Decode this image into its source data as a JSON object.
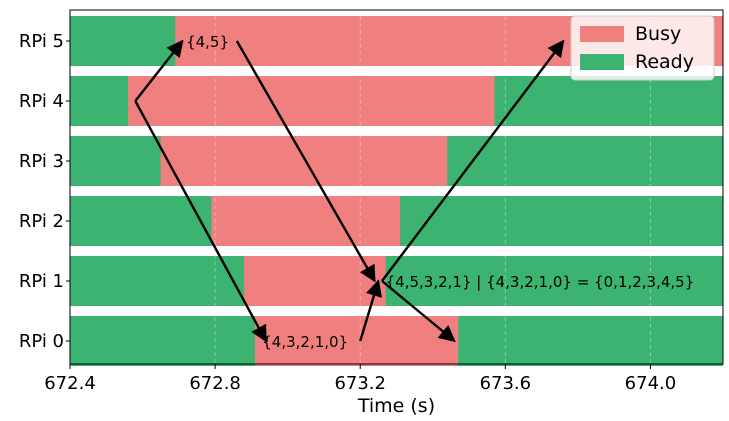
{
  "chart_data": {
    "type": "bar",
    "orientation": "horizontal-timeline",
    "title": "",
    "xlabel": "Time (s)",
    "ylabel": "",
    "xlim": [
      672.4,
      674.2
    ],
    "xticks": [
      "672.4",
      "672.8",
      "673.2",
      "673.6",
      "674.0"
    ],
    "grid": true,
    "legend_position": "top-right",
    "colors": {
      "busy": "#F08080",
      "ready": "#3CB371"
    },
    "series": [
      {
        "name": "Busy",
        "color": "#F08080"
      },
      {
        "name": "Ready",
        "color": "#3CB371"
      }
    ],
    "categories": [
      "RPi 5",
      "RPi 4",
      "RPi 3",
      "RPi 2",
      "RPi 1",
      "RPi 0"
    ],
    "rows": [
      {
        "label": "RPi 5",
        "busy": [
          672.69,
          674.2
        ]
      },
      {
        "label": "RPi 4",
        "busy": [
          672.56,
          673.57
        ]
      },
      {
        "label": "RPi 3",
        "busy": [
          672.65,
          673.44
        ]
      },
      {
        "label": "RPi 2",
        "busy": [
          672.79,
          673.31
        ]
      },
      {
        "label": "RPi 1",
        "busy": [
          672.88,
          673.27
        ]
      },
      {
        "label": "RPi 0",
        "busy": [
          672.91,
          673.47
        ]
      }
    ],
    "annotations": [
      {
        "text": "{4,5}",
        "x": 672.72,
        "row": "RPi 5"
      },
      {
        "text": "{4,5,3,2,1} | {4,3,2,1,0} = {0,1,2,3,4,5}",
        "x": 673.27,
        "row": "RPi 1"
      },
      {
        "text": "{4,3,2,1,0}",
        "x": 672.93,
        "row": "RPi 0"
      }
    ],
    "arrows": [
      {
        "from": [
          672.58,
          "RPi 4"
        ],
        "to": [
          672.71,
          "RPi 5"
        ]
      },
      {
        "from": [
          672.58,
          "RPi 4"
        ],
        "to": [
          672.94,
          "RPi 0"
        ]
      },
      {
        "from": [
          672.86,
          "RPi 5"
        ],
        "to": [
          673.24,
          "RPi 1"
        ]
      },
      {
        "from": [
          673.2,
          "RPi 0"
        ],
        "to": [
          673.25,
          "RPi 1"
        ]
      },
      {
        "from": [
          673.26,
          "RPi 1"
        ],
        "to": [
          673.46,
          "RPi 0"
        ]
      },
      {
        "from": [
          673.26,
          "RPi 1"
        ],
        "to": [
          673.76,
          "RPi 5"
        ]
      }
    ]
  }
}
